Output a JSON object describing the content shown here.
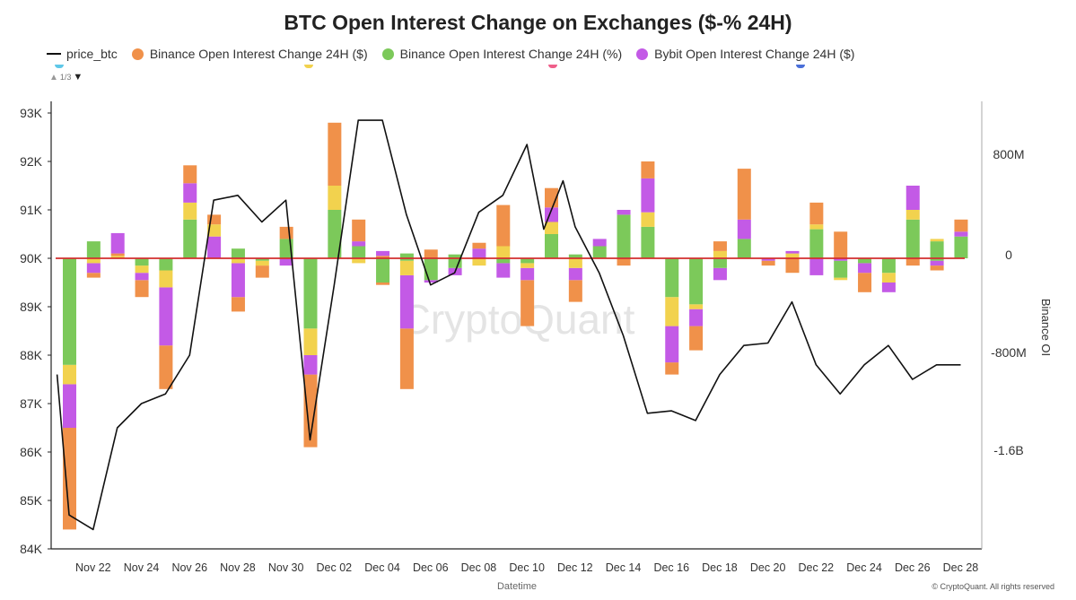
{
  "title": "BTC Open Interest Change on Exchanges ($-% 24H)",
  "legend": {
    "items": [
      {
        "label": "price_btc",
        "kind": "line",
        "color": "#111111"
      },
      {
        "label": "Binance Open Interest Change 24H ($)",
        "kind": "dot",
        "color": "#f0914a"
      },
      {
        "label": "Binance Open Interest Change 24H (%)",
        "kind": "dot",
        "color": "#7cc95a"
      },
      {
        "label": "Bybit Open Interest Change 24H ($)",
        "kind": "dot",
        "color": "#c35ae6"
      }
    ],
    "pager": "1/3",
    "hidden_series_colors": [
      "#5fc8e8",
      "#f2d24e",
      "#ef5f8a",
      "#4a6fd9"
    ]
  },
  "footer": "© CryptoQuant. All rights reserved",
  "watermark": "CryptoQuant",
  "chart_data": {
    "type": "bar",
    "xlabel": "Datetime",
    "ylabel_left": "",
    "ylabel_right": "Binance OI",
    "y_left": {
      "min": 84000,
      "max": 93000,
      "ticks": [
        {
          "v": 84000,
          "label": "84K"
        },
        {
          "v": 85000,
          "label": "85K"
        },
        {
          "v": 86000,
          "label": "86K"
        },
        {
          "v": 87000,
          "label": "87K"
        },
        {
          "v": 88000,
          "label": "88K"
        },
        {
          "v": 89000,
          "label": "89K"
        },
        {
          "v": 90000,
          "label": "90K"
        },
        {
          "v": 91000,
          "label": "91K"
        },
        {
          "v": 92000,
          "label": "92K"
        },
        {
          "v": 93000,
          "label": "93K"
        }
      ]
    },
    "y_right": {
      "ticks": [
        {
          "label": "800M"
        },
        {
          "label": "0"
        },
        {
          "label": "-800M"
        },
        {
          "label": "-1.6B"
        }
      ]
    },
    "x_tick_labels": [
      "Nov 22",
      "Nov 24",
      "Nov 26",
      "Nov 28",
      "Nov 30",
      "Dec 02",
      "Dec 04",
      "Dec 06",
      "Dec 08",
      "Dec 10",
      "Dec 12",
      "Dec 14",
      "Dec 16",
      "Dec 18",
      "Dec 20",
      "Dec 22",
      "Dec 24",
      "Dec 26",
      "Dec 28"
    ],
    "x_tick_days": [
      1,
      3,
      5,
      7,
      9,
      11,
      13,
      15,
      17,
      19,
      21,
      23,
      25,
      27,
      29,
      31,
      33,
      35,
      37
    ],
    "grid": false,
    "zero_line": {
      "level": 90000,
      "color": "#d32f2f"
    },
    "colors": {
      "binance_usd": "#f0914a",
      "binance_pct": "#7cc95a",
      "bybit_usd": "#c35ae6",
      "cyan": "#5fc8e8",
      "yellow": "#f2d24e",
      "red": "#ef5f8a",
      "blue": "#4a6fd9"
    },
    "series_note": "bars share the left axis baseline at 90K; segments listed bottom-to-top as [from, to, color]",
    "bars": [
      {
        "day": 0,
        "segments": [
          [
            84400,
            86500,
            "binance_usd"
          ],
          [
            86500,
            87400,
            "bybit_usd"
          ],
          [
            87400,
            87800,
            "yellow"
          ],
          [
            87800,
            90000,
            "binance_pct"
          ]
        ]
      },
      {
        "day": 1,
        "segments": [
          [
            89600,
            89700,
            "binance_usd"
          ],
          [
            89700,
            89900,
            "bybit_usd"
          ],
          [
            89900,
            90000,
            "yellow"
          ],
          [
            90000,
            90350,
            "binance_pct"
          ]
        ]
      },
      {
        "day": 2,
        "segments": [
          [
            90000,
            90050,
            "yellow"
          ],
          [
            90050,
            90100,
            "binance_usd"
          ],
          [
            90100,
            90520,
            "bybit_usd"
          ]
        ]
      },
      {
        "day": 3,
        "segments": [
          [
            89200,
            89550,
            "binance_usd"
          ],
          [
            89550,
            89700,
            "bybit_usd"
          ],
          [
            89700,
            89850,
            "yellow"
          ],
          [
            89850,
            90000,
            "binance_pct"
          ]
        ]
      },
      {
        "day": 4,
        "segments": [
          [
            87300,
            88200,
            "binance_usd"
          ],
          [
            88200,
            89400,
            "bybit_usd"
          ],
          [
            89400,
            89750,
            "yellow"
          ],
          [
            89750,
            90000,
            "binance_pct"
          ]
        ]
      },
      {
        "day": 5,
        "segments": [
          [
            90000,
            90800,
            "binance_pct"
          ],
          [
            90800,
            91150,
            "yellow"
          ],
          [
            91150,
            91550,
            "bybit_usd"
          ],
          [
            91550,
            91920,
            "binance_usd"
          ]
        ]
      },
      {
        "day": 6,
        "segments": [
          [
            90000,
            90450,
            "bybit_usd"
          ],
          [
            90450,
            90700,
            "yellow"
          ],
          [
            90700,
            90900,
            "binance_usd"
          ]
        ]
      },
      {
        "day": 7,
        "segments": [
          [
            88900,
            89200,
            "binance_usd"
          ],
          [
            89200,
            89900,
            "bybit_usd"
          ],
          [
            89900,
            90000,
            "yellow"
          ],
          [
            90000,
            90200,
            "binance_pct"
          ]
        ]
      },
      {
        "day": 8,
        "segments": [
          [
            89600,
            89850,
            "binance_usd"
          ],
          [
            89850,
            89950,
            "yellow"
          ],
          [
            89950,
            90000,
            "binance_pct"
          ]
        ]
      },
      {
        "day": 9,
        "segments": [
          [
            89850,
            90000,
            "bybit_usd"
          ],
          [
            90000,
            90400,
            "binance_pct"
          ],
          [
            90400,
            90650,
            "binance_usd"
          ]
        ]
      },
      {
        "day": 10,
        "segments": [
          [
            86100,
            87600,
            "binance_usd"
          ],
          [
            87600,
            88000,
            "bybit_usd"
          ],
          [
            88000,
            88550,
            "yellow"
          ],
          [
            88550,
            90000,
            "binance_pct"
          ]
        ]
      },
      {
        "day": 11,
        "segments": [
          [
            90000,
            91000,
            "binance_pct"
          ],
          [
            91000,
            91500,
            "yellow"
          ],
          [
            91500,
            92800,
            "binance_usd"
          ]
        ]
      },
      {
        "day": 12,
        "segments": [
          [
            89900,
            90000,
            "yellow"
          ],
          [
            90000,
            90250,
            "binance_pct"
          ],
          [
            90250,
            90350,
            "bybit_usd"
          ],
          [
            90350,
            90800,
            "binance_usd"
          ]
        ]
      },
      {
        "day": 13,
        "segments": [
          [
            89450,
            89500,
            "binance_usd"
          ],
          [
            89500,
            90000,
            "binance_pct"
          ],
          [
            90000,
            90050,
            "binance_usd"
          ],
          [
            90050,
            90150,
            "bybit_usd"
          ]
        ]
      },
      {
        "day": 14,
        "segments": [
          [
            87300,
            88550,
            "binance_usd"
          ],
          [
            88550,
            89650,
            "bybit_usd"
          ],
          [
            89650,
            89950,
            "yellow"
          ],
          [
            89950,
            90000,
            "binance_pct"
          ],
          [
            90000,
            90100,
            "binance_pct"
          ]
        ]
      },
      {
        "day": 15,
        "segments": [
          [
            89500,
            89550,
            "bybit_usd"
          ],
          [
            89550,
            90000,
            "binance_pct"
          ],
          [
            90000,
            90180,
            "binance_usd"
          ]
        ]
      },
      {
        "day": 16,
        "segments": [
          [
            89650,
            89800,
            "bybit_usd"
          ],
          [
            89800,
            90000,
            "binance_pct"
          ],
          [
            90000,
            90080,
            "binance_pct"
          ]
        ]
      },
      {
        "day": 17,
        "segments": [
          [
            89850,
            90000,
            "yellow"
          ],
          [
            90000,
            90200,
            "bybit_usd"
          ],
          [
            90200,
            90320,
            "binance_usd"
          ]
        ]
      },
      {
        "day": 18,
        "segments": [
          [
            89600,
            89900,
            "bybit_usd"
          ],
          [
            89900,
            90000,
            "binance_pct"
          ],
          [
            90000,
            90250,
            "yellow"
          ],
          [
            90250,
            91100,
            "binance_usd"
          ]
        ]
      },
      {
        "day": 19,
        "segments": [
          [
            88600,
            89550,
            "binance_usd"
          ],
          [
            89550,
            89800,
            "bybit_usd"
          ],
          [
            89800,
            89900,
            "yellow"
          ],
          [
            89900,
            90000,
            "binance_pct"
          ]
        ]
      },
      {
        "day": 20,
        "segments": [
          [
            90000,
            90500,
            "binance_pct"
          ],
          [
            90500,
            90750,
            "yellow"
          ],
          [
            90750,
            91050,
            "bybit_usd"
          ],
          [
            91050,
            91450,
            "binance_usd"
          ]
        ]
      },
      {
        "day": 21,
        "segments": [
          [
            89100,
            89550,
            "binance_usd"
          ],
          [
            89550,
            89800,
            "bybit_usd"
          ],
          [
            89800,
            90000,
            "yellow"
          ],
          [
            90000,
            90080,
            "binance_pct"
          ]
        ]
      },
      {
        "day": 22,
        "segments": [
          [
            90000,
            90250,
            "binance_pct"
          ],
          [
            90250,
            90400,
            "bybit_usd"
          ]
        ]
      },
      {
        "day": 23,
        "segments": [
          [
            89850,
            90000,
            "binance_usd"
          ],
          [
            90000,
            90900,
            "binance_pct"
          ],
          [
            90900,
            91000,
            "bybit_usd"
          ]
        ]
      },
      {
        "day": 24,
        "segments": [
          [
            90000,
            90650,
            "binance_pct"
          ],
          [
            90650,
            90950,
            "yellow"
          ],
          [
            90950,
            91650,
            "bybit_usd"
          ],
          [
            91650,
            92000,
            "binance_usd"
          ]
        ]
      },
      {
        "day": 25,
        "segments": [
          [
            87600,
            87850,
            "binance_usd"
          ],
          [
            87850,
            88600,
            "bybit_usd"
          ],
          [
            88600,
            89200,
            "yellow"
          ],
          [
            89200,
            90000,
            "binance_pct"
          ]
        ]
      },
      {
        "day": 26,
        "segments": [
          [
            88100,
            88600,
            "binance_usd"
          ],
          [
            88600,
            88950,
            "bybit_usd"
          ],
          [
            88950,
            89050,
            "yellow"
          ],
          [
            89050,
            90000,
            "binance_pct"
          ]
        ]
      },
      {
        "day": 27,
        "segments": [
          [
            89550,
            89800,
            "bybit_usd"
          ],
          [
            89800,
            90000,
            "binance_pct"
          ],
          [
            90000,
            90150,
            "yellow"
          ],
          [
            90150,
            90350,
            "binance_usd"
          ]
        ]
      },
      {
        "day": 28,
        "segments": [
          [
            90000,
            90400,
            "binance_pct"
          ],
          [
            90400,
            90800,
            "bybit_usd"
          ],
          [
            90800,
            91850,
            "binance_usd"
          ]
        ]
      },
      {
        "day": 29,
        "segments": [
          [
            89850,
            89950,
            "binance_usd"
          ],
          [
            89950,
            90000,
            "bybit_usd"
          ]
        ]
      },
      {
        "day": 30,
        "segments": [
          [
            89700,
            90000,
            "binance_usd"
          ],
          [
            90000,
            90100,
            "yellow"
          ],
          [
            90100,
            90150,
            "bybit_usd"
          ]
        ]
      },
      {
        "day": 31,
        "segments": [
          [
            89650,
            90000,
            "bybit_usd"
          ],
          [
            90000,
            90600,
            "binance_pct"
          ],
          [
            90600,
            90700,
            "yellow"
          ],
          [
            90700,
            91150,
            "binance_usd"
          ]
        ]
      },
      {
        "day": 32,
        "segments": [
          [
            89550,
            89600,
            "yellow"
          ],
          [
            89600,
            89950,
            "binance_pct"
          ],
          [
            89950,
            90000,
            "bybit_usd"
          ],
          [
            90000,
            90550,
            "binance_usd"
          ]
        ]
      },
      {
        "day": 33,
        "segments": [
          [
            89300,
            89700,
            "binance_usd"
          ],
          [
            89700,
            89900,
            "bybit_usd"
          ],
          [
            89900,
            90000,
            "binance_pct"
          ]
        ]
      },
      {
        "day": 34,
        "segments": [
          [
            89300,
            89500,
            "bybit_usd"
          ],
          [
            89500,
            89700,
            "yellow"
          ],
          [
            89700,
            90000,
            "binance_pct"
          ]
        ]
      },
      {
        "day": 35,
        "segments": [
          [
            89850,
            90000,
            "binance_usd"
          ],
          [
            90000,
            90800,
            "binance_pct"
          ],
          [
            90800,
            91000,
            "yellow"
          ],
          [
            91000,
            91500,
            "bybit_usd"
          ]
        ]
      },
      {
        "day": 36,
        "segments": [
          [
            89750,
            89850,
            "binance_usd"
          ],
          [
            89850,
            89950,
            "bybit_usd"
          ],
          [
            89950,
            90000,
            "binance_pct"
          ],
          [
            90000,
            90350,
            "binance_pct"
          ],
          [
            90350,
            90400,
            "yellow"
          ]
        ]
      },
      {
        "day": 37,
        "segments": [
          [
            90000,
            90450,
            "binance_pct"
          ],
          [
            90450,
            90550,
            "bybit_usd"
          ],
          [
            90550,
            90800,
            "binance_usd"
          ]
        ]
      }
    ],
    "price_btc": {
      "days": [
        -0.5,
        0,
        1,
        2,
        3,
        4,
        5,
        6,
        7,
        8,
        9,
        10,
        11,
        12,
        13,
        14,
        15,
        16,
        17,
        18,
        19,
        19.7,
        20.5,
        21,
        22,
        23,
        24,
        25,
        26,
        27,
        28,
        29,
        30,
        31,
        32,
        33,
        34,
        35,
        36,
        37
      ],
      "values": [
        87600,
        84700,
        84400,
        86500,
        87000,
        87200,
        88000,
        91200,
        91300,
        90750,
        91200,
        86250,
        89450,
        92850,
        92850,
        90900,
        89450,
        89700,
        90950,
        91300,
        92350,
        90600,
        91600,
        90650,
        89700,
        88400,
        86800,
        86850,
        86650,
        87600,
        88200,
        88250,
        89100,
        87800,
        87200,
        87800,
        88200,
        87500,
        87800,
        87800
      ]
    }
  }
}
